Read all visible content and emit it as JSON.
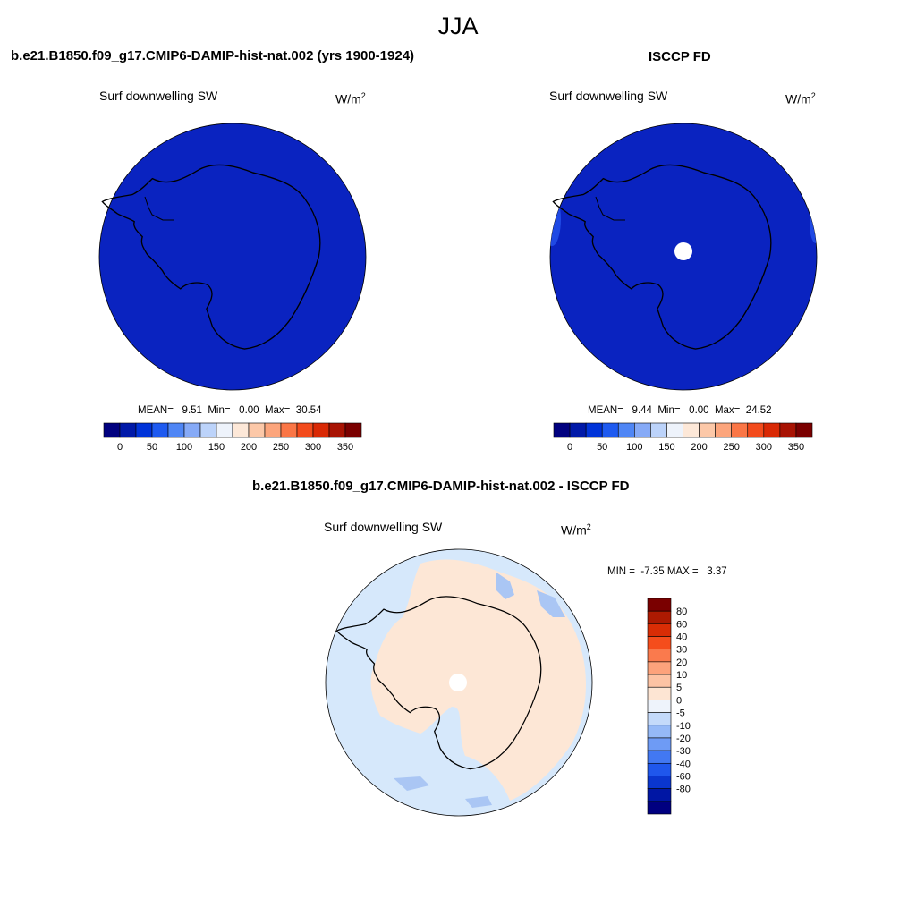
{
  "figure": {
    "title": "JJA"
  },
  "panels": [
    {
      "title": "b.e21.B1850.f09_g17.CMIP6-DAMIP-hist-nat.002 (yrs 1900-1924)",
      "variable": "Surf downwelling SW",
      "units": "W/m",
      "units_sup": "2",
      "stats": {
        "mean_label": "MEAN=",
        "mean": "9.51",
        "min_label": "Min=",
        "min": "0.00",
        "max_label": "Max=",
        "max": "30.54"
      }
    },
    {
      "title": "ISCCP FD",
      "variable": "Surf downwelling SW",
      "units": "W/m",
      "units_sup": "2",
      "stats": {
        "mean_label": "MEAN=",
        "mean": "9.44",
        "min_label": "Min=",
        "min": "0.00",
        "max_label": "Max=",
        "max": "24.52"
      }
    },
    {
      "title": "b.e21.B1850.f09_g17.CMIP6-DAMIP-hist-nat.002 - ISCCP FD",
      "variable": "Surf downwelling SW",
      "units": "W/m",
      "units_sup": "2",
      "stats": {
        "min_label": "MIN =",
        "min": "-7.35",
        "max_label": "MAX =",
        "max": "3.37"
      }
    }
  ],
  "colorbar_abs": {
    "colors": [
      "#00007f",
      "#0019a8",
      "#0033d9",
      "#1e5af0",
      "#4f86f5",
      "#86aaf7",
      "#bcd3fa",
      "#eef3fb",
      "#fde8d8",
      "#fcc8a8",
      "#fca57c",
      "#fa7646",
      "#f34b1c",
      "#d92905",
      "#a81303",
      "#7a0000"
    ],
    "labels": [
      "0",
      "50",
      "100",
      "150",
      "200",
      "250",
      "300",
      "350"
    ]
  },
  "colorbar_diff": {
    "colors": [
      "#7a0000",
      "#ad1a02",
      "#d92d05",
      "#f54d1c",
      "#fa7a4d",
      "#fca27b",
      "#fcc3a4",
      "#fde5d3",
      "#eef3fb",
      "#c4dafa",
      "#95b9f7",
      "#6e9bf5",
      "#4278f2",
      "#1f57ec",
      "#0a36cf",
      "#0016a4",
      "#000080"
    ],
    "labels": [
      "80",
      "60",
      "40",
      "30",
      "20",
      "10",
      "5",
      "0",
      "-5",
      "-10",
      "-20",
      "-30",
      "-40",
      "-60",
      "-80"
    ]
  },
  "map_colors": {
    "ocean_model": "#0a23c0",
    "ocean_obs": "#0a23c0",
    "obs_edge": "#1f49e4",
    "diff_bg": "#d6e8fb",
    "diff_pos": "#fde7d6",
    "diff_neg": "#aac6f4",
    "missing": "#ffffff",
    "coast": "#000000"
  }
}
